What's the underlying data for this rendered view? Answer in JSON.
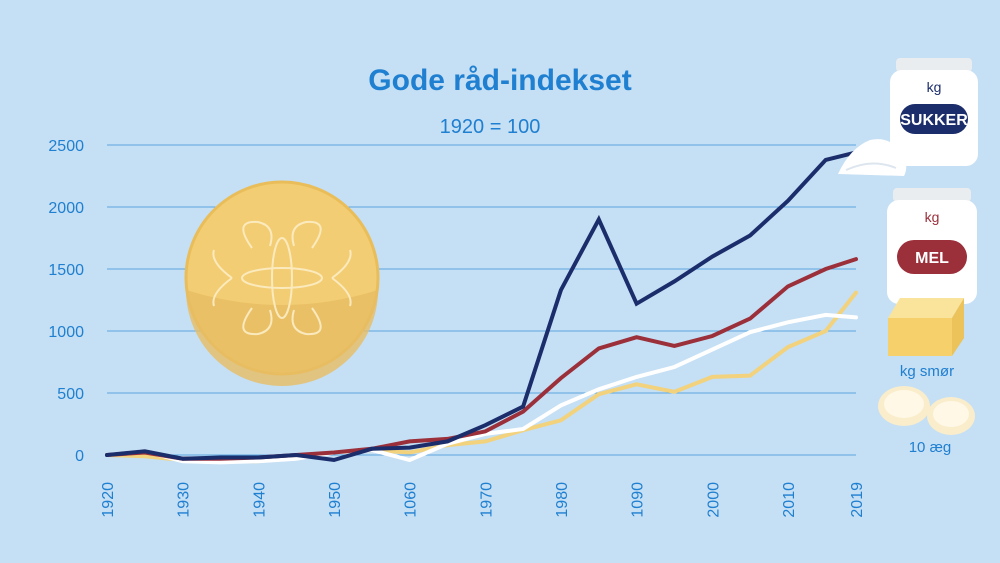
{
  "chart_data": {
    "type": "line",
    "title": "Gode råd-indekset",
    "subtitle": "1920 = 100",
    "x": [
      1920,
      1925,
      1930,
      1935,
      1940,
      1945,
      1950,
      1955,
      1960,
      1965,
      1970,
      1975,
      1980,
      1985,
      1990,
      1995,
      2000,
      2005,
      2010,
      2015,
      2019
    ],
    "x_ticks": [
      "1920",
      "1930",
      "1940",
      "1950",
      "1060",
      "1970",
      "1980",
      "1090",
      "2000",
      "2010",
      "2019"
    ],
    "y_ticks": [
      "0",
      "500",
      "1000",
      "1500",
      "2000",
      "2500"
    ],
    "ylim": [
      0,
      2500
    ],
    "grid": true,
    "series": [
      {
        "name": "kg SUKKER",
        "color": "#1b2d6b",
        "values": [
          0,
          30,
          -30,
          -20,
          -20,
          0,
          -40,
          50,
          60,
          110,
          240,
          390,
          1330,
          1900,
          1220,
          1400,
          1600,
          1770,
          2050,
          2380,
          2440
        ]
      },
      {
        "name": "kg MEL",
        "color": "#9b2f3a",
        "values": [
          0,
          20,
          -30,
          -30,
          -20,
          0,
          20,
          50,
          110,
          130,
          190,
          350,
          620,
          860,
          950,
          880,
          960,
          1100,
          1360,
          1500,
          1580
        ]
      },
      {
        "name": "kg smør",
        "color": "#f2d27c",
        "values": [
          0,
          -10,
          -40,
          -50,
          -50,
          -10,
          20,
          40,
          20,
          80,
          110,
          200,
          280,
          490,
          570,
          510,
          630,
          640,
          870,
          1000,
          1310
        ]
      },
      {
        "name": "10 æg",
        "color": "#ffffff",
        "values": [
          0,
          30,
          -50,
          -60,
          -50,
          -30,
          20,
          40,
          -40,
          90,
          170,
          210,
          400,
          530,
          630,
          710,
          850,
          990,
          1070,
          1130,
          1110
        ]
      }
    ]
  },
  "legend": {
    "sukker_kg": "kg",
    "sukker_label": "SUKKER",
    "mel_kg": "kg",
    "mel_label": "MEL",
    "smor_label": "kg smør",
    "aeg_label": "10 æg"
  }
}
